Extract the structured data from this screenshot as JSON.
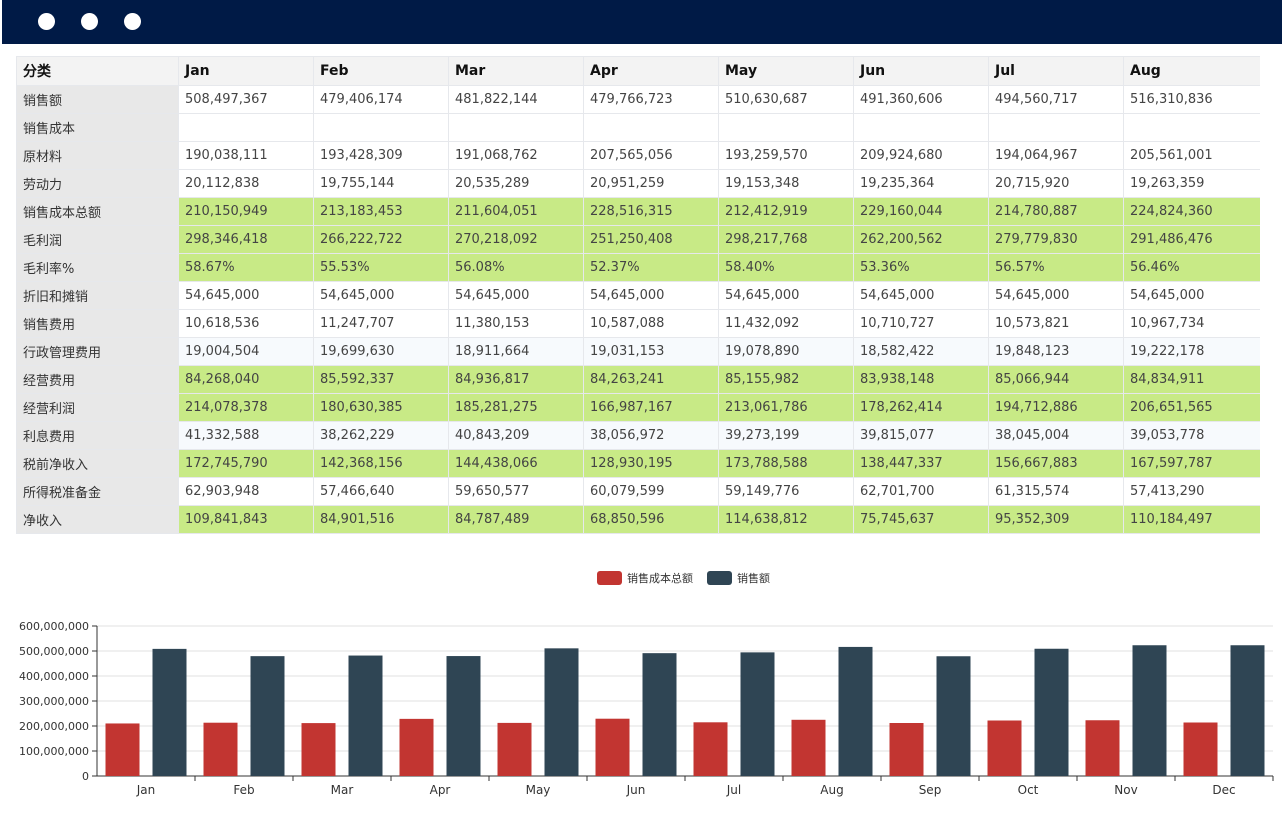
{
  "window": {
    "controls": [
      "close-dot",
      "minimize-dot",
      "maximize-dot"
    ]
  },
  "table": {
    "header": [
      "分类",
      "Jan",
      "Feb",
      "Mar",
      "Apr",
      "May",
      "Jun",
      "Jul",
      "Aug"
    ],
    "rows": [
      {
        "label": "销售额",
        "values": [
          "508,497,367",
          "479,406,174",
          "481,822,144",
          "479,766,723",
          "510,630,687",
          "491,360,606",
          "494,560,717",
          "516,310,836"
        ],
        "highlight": false
      },
      {
        "label": "销售成本",
        "values": [
          "",
          "",
          "",
          "",
          "",
          "",
          "",
          ""
        ],
        "highlight": false
      },
      {
        "label": "原材料",
        "values": [
          "190,038,111",
          "193,428,309",
          "191,068,762",
          "207,565,056",
          "193,259,570",
          "209,924,680",
          "194,064,967",
          "205,561,001"
        ],
        "highlight": false
      },
      {
        "label": "劳动力",
        "values": [
          "20,112,838",
          "19,755,144",
          "20,535,289",
          "20,951,259",
          "19,153,348",
          "19,235,364",
          "20,715,920",
          "19,263,359"
        ],
        "highlight": false
      },
      {
        "label": "销售成本总额",
        "values": [
          "210,150,949",
          "213,183,453",
          "211,604,051",
          "228,516,315",
          "212,412,919",
          "229,160,044",
          "214,780,887",
          "224,824,360"
        ],
        "highlight": true
      },
      {
        "label": "毛利润",
        "values": [
          "298,346,418",
          "266,222,722",
          "270,218,092",
          "251,250,408",
          "298,217,768",
          "262,200,562",
          "279,779,830",
          "291,486,476"
        ],
        "highlight": true
      },
      {
        "label": "毛利率%",
        "values": [
          "58.67%",
          "55.53%",
          "56.08%",
          "52.37%",
          "58.40%",
          "53.36%",
          "56.57%",
          "56.46%"
        ],
        "highlight": true
      },
      {
        "label": "折旧和摊销",
        "values": [
          "54,645,000",
          "54,645,000",
          "54,645,000",
          "54,645,000",
          "54,645,000",
          "54,645,000",
          "54,645,000",
          "54,645,000"
        ],
        "highlight": false
      },
      {
        "label": "销售费用",
        "values": [
          "10,618,536",
          "11,247,707",
          "11,380,153",
          "10,587,088",
          "11,432,092",
          "10,710,727",
          "10,573,821",
          "10,967,734"
        ],
        "highlight": false
      },
      {
        "label": "行政管理费用",
        "values": [
          "19,004,504",
          "19,699,630",
          "18,911,664",
          "19,031,153",
          "19,078,890",
          "18,582,422",
          "19,848,123",
          "19,222,178"
        ],
        "highlight": false,
        "tint": true
      },
      {
        "label": "经营费用",
        "values": [
          "84,268,040",
          "85,592,337",
          "84,936,817",
          "84,263,241",
          "85,155,982",
          "83,938,148",
          "85,066,944",
          "84,834,911"
        ],
        "highlight": true
      },
      {
        "label": "经营利润",
        "values": [
          "214,078,378",
          "180,630,385",
          "185,281,275",
          "166,987,167",
          "213,061,786",
          "178,262,414",
          "194,712,886",
          "206,651,565"
        ],
        "highlight": true
      },
      {
        "label": "利息费用",
        "values": [
          "41,332,588",
          "38,262,229",
          "40,843,209",
          "38,056,972",
          "39,273,199",
          "39,815,077",
          "38,045,004",
          "39,053,778"
        ],
        "highlight": false,
        "tint": true
      },
      {
        "label": "税前净收入",
        "values": [
          "172,745,790",
          "142,368,156",
          "144,438,066",
          "128,930,195",
          "173,788,588",
          "138,447,337",
          "156,667,883",
          "167,597,787"
        ],
        "highlight": true
      },
      {
        "label": "所得税准备金",
        "values": [
          "62,903,948",
          "57,466,640",
          "59,650,577",
          "60,079,599",
          "59,149,776",
          "62,701,700",
          "61,315,574",
          "57,413,290"
        ],
        "highlight": false
      },
      {
        "label": "净收入",
        "values": [
          "109,841,843",
          "84,901,516",
          "84,787,489",
          "68,850,596",
          "114,638,812",
          "75,745,637",
          "95,352,309",
          "110,184,497"
        ],
        "highlight": true
      }
    ]
  },
  "chart_data": {
    "type": "bar",
    "title": "",
    "categories": [
      "Jan",
      "Feb",
      "Mar",
      "Apr",
      "May",
      "Jun",
      "Jul",
      "Aug",
      "Sep",
      "Oct",
      "Nov",
      "Dec"
    ],
    "series": [
      {
        "name": "销售成本总额",
        "color": "#c23531",
        "values": [
          210150949,
          213183453,
          211604051,
          228516315,
          212412919,
          229160044,
          214780887,
          224824360,
          212000000,
          222000000,
          223000000,
          214000000
        ]
      },
      {
        "name": "销售额",
        "color": "#2f4554",
        "values": [
          508497367,
          479406174,
          481822144,
          479766723,
          510630687,
          491360606,
          494560717,
          516310836,
          479000000,
          509000000,
          523000000,
          523000000
        ]
      }
    ],
    "ylim": [
      0,
      600000000
    ],
    "yticks": [
      "0",
      "100,000,000",
      "200,000,000",
      "300,000,000",
      "400,000,000",
      "500,000,000",
      "600,000,000"
    ],
    "grid": true,
    "legend": "top-center",
    "xlabel": "",
    "ylabel": ""
  }
}
